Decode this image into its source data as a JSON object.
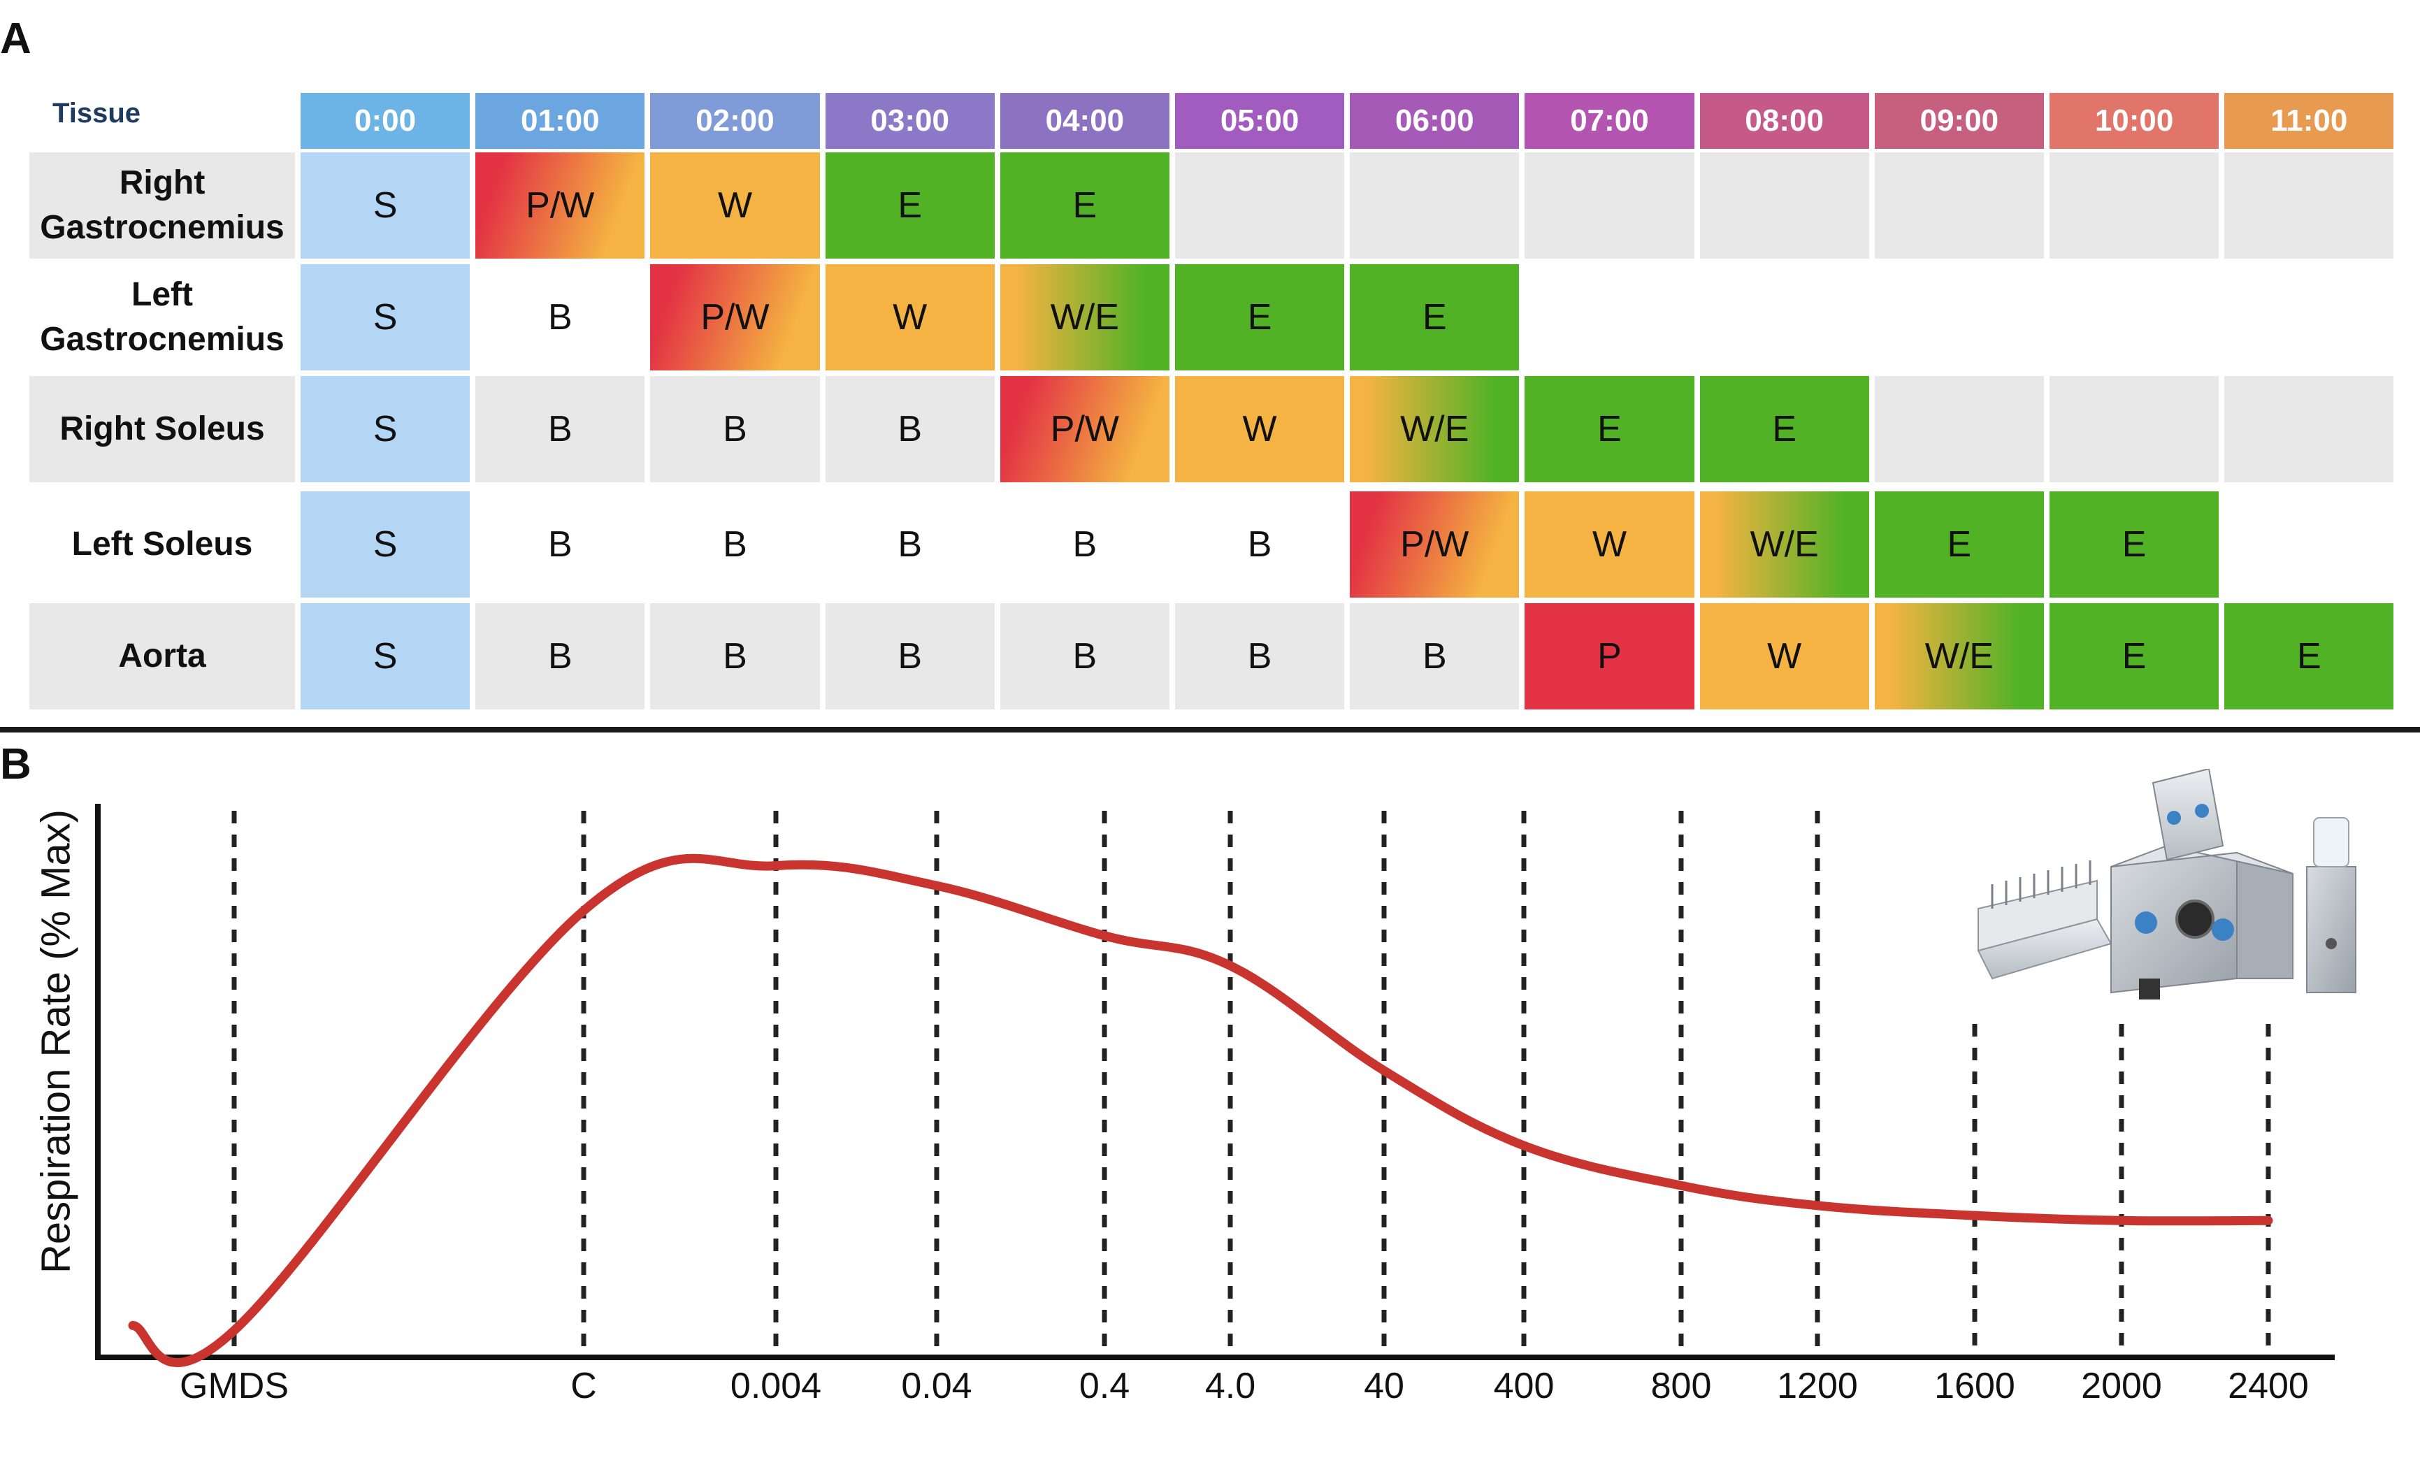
{
  "panelA": {
    "letter": "A",
    "tissue_header": "Tissue",
    "times": [
      "0:00",
      "01:00",
      "02:00",
      "03:00",
      "04:00",
      "05:00",
      "06:00",
      "07:00",
      "08:00",
      "09:00",
      "10:00",
      "11:00"
    ],
    "header_colors": [
      "#6cb4e6",
      "#6ca6e0",
      "#7f9bd8",
      "#8b78c6",
      "#8e72c2",
      "#a25cc0",
      "#a55ab8",
      "#b355b0",
      "#c55a8a",
      "#c6607e",
      "#e2756a",
      "#e89a50"
    ],
    "rows": [
      {
        "label_line1": "Right",
        "label_line2": "Gastrocnemius",
        "cells": [
          "S",
          "P/W",
          "W",
          "E",
          "E",
          "",
          "",
          "",
          "",
          "",
          "",
          ""
        ]
      },
      {
        "label_line1": "Left",
        "label_line2": "Gastrocnemius",
        "cells": [
          "S",
          "B",
          "P/W",
          "W",
          "W/E",
          "E",
          "E",
          "",
          "",
          "",
          "",
          ""
        ]
      },
      {
        "label_line1": "Right Soleus",
        "label_line2": "",
        "cells": [
          "S",
          "B",
          "B",
          "B",
          "P/W",
          "W",
          "W/E",
          "E",
          "E",
          "",
          "",
          ""
        ]
      },
      {
        "label_line1": "Left Soleus",
        "label_line2": "",
        "cells": [
          "S",
          "B",
          "B",
          "B",
          "B",
          "B",
          "P/W",
          "W",
          "W/E",
          "E",
          "E",
          ""
        ]
      },
      {
        "label_line1": "Aorta",
        "label_line2": "",
        "cells": [
          "S",
          "B",
          "B",
          "B",
          "B",
          "B",
          "B",
          "P",
          "W",
          "W/E",
          "E",
          "E"
        ]
      }
    ],
    "colors": {
      "S": "#b3d6f5",
      "P": "#e33344",
      "W": "#f4b342",
      "E": "#52b226",
      "grey": "#e8e8e8",
      "white": "#ffffff"
    }
  },
  "panelB": {
    "letter": "B",
    "ylabel": "Respiration Rate (% Max)",
    "curve_color": "#c9342e",
    "instrument_icon": "respirometer-icon",
    "chart_data": {
      "type": "line",
      "x": [
        "GMDS",
        "C",
        "0.004",
        "0.04",
        "0.4",
        "4.0",
        "40",
        "400",
        "800",
        "1200",
        "1600",
        "2000",
        "2400"
      ],
      "ylabel": "Respiration Rate (% Max)",
      "xlabel": "",
      "ylim": [
        0,
        100
      ],
      "series": [
        {
          "values": [
            3,
            87,
            96,
            92,
            82,
            76,
            55,
            40,
            32,
            28,
            26,
            25,
            25
          ]
        }
      ]
    }
  }
}
